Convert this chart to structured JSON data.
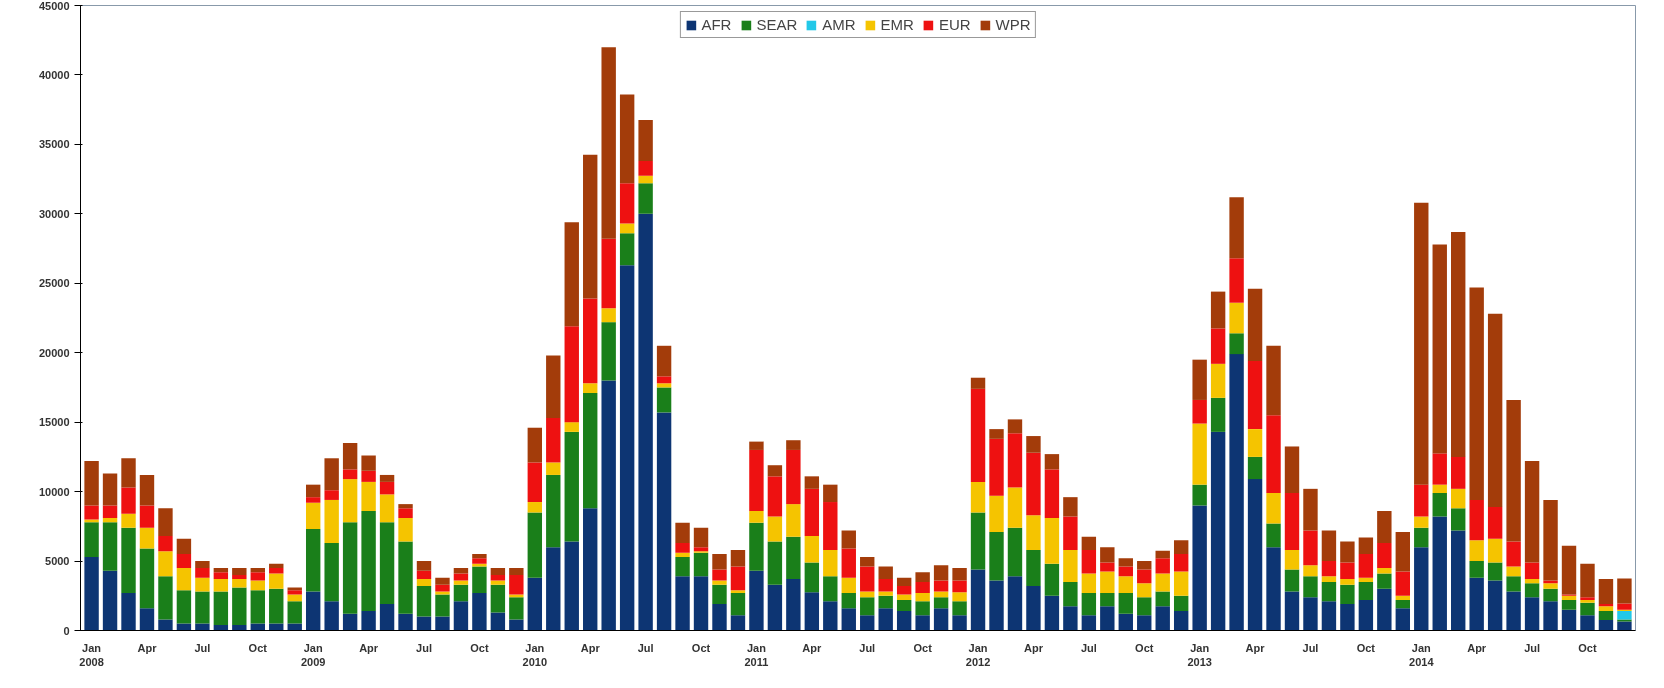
{
  "chart_data": {
    "type": "bar",
    "stacked": true,
    "legend": "top",
    "grid": false,
    "categories": [
      "Jan\n2008",
      null,
      null,
      "Apr",
      null,
      null,
      "Jul",
      null,
      null,
      "Oct",
      null,
      null,
      "Jan\n2009",
      null,
      null,
      "Apr",
      null,
      null,
      "Jul",
      null,
      null,
      "Oct",
      null,
      null,
      "Jan\n2010",
      null,
      null,
      "Apr",
      null,
      null,
      "Jul",
      null,
      null,
      "Oct",
      null,
      null,
      "Jan\n2011",
      null,
      null,
      "Apr",
      null,
      null,
      "Jul",
      null,
      null,
      "Oct",
      null,
      null,
      "Jan\n2012",
      null,
      null,
      "Apr",
      null,
      null,
      "Jul",
      null,
      null,
      "Oct",
      null,
      null,
      "Jan\n2013",
      null,
      null,
      "Apr",
      null,
      null,
      "Jul",
      null,
      null,
      "Oct",
      null,
      null,
      "Jan\n2014",
      null,
      null,
      "Apr",
      null,
      null,
      "Jul",
      null,
      null,
      "Oct",
      null,
      null
    ],
    "ylim": [
      0,
      45000
    ],
    "yticks": [
      0,
      5000,
      10000,
      15000,
      20000,
      25000,
      30000,
      35000,
      40000,
      45000
    ],
    "series": [
      {
        "name": "AFR",
        "color": "#0d3573",
        "values": [
          5300,
          4300,
          2700,
          1600,
          800,
          500,
          500,
          400,
          400,
          500,
          500,
          500,
          2800,
          2100,
          1200,
          1400,
          1900,
          1200,
          1000,
          1000,
          2100,
          2700,
          1300,
          800,
          3800,
          6000,
          6400,
          8800,
          18000,
          26300,
          30000,
          15700,
          3900,
          3900,
          1900,
          1100,
          4300,
          3300,
          3700,
          2750,
          2100,
          1600,
          1100,
          1600,
          1400,
          1100,
          1600,
          1100,
          4400,
          3600,
          3900,
          3200,
          2500,
          1750,
          1100,
          1750,
          1200,
          1100,
          1750,
          1400,
          9000,
          14300,
          19900,
          10900,
          6000,
          2800,
          2400,
          2100,
          1900,
          2200,
          3000,
          1600,
          6000,
          8200,
          7200,
          3800,
          3600,
          2800,
          2400,
          2100,
          1500,
          1100,
          750,
          650
        ]
      },
      {
        "name": "SEAR",
        "color": "#1a7f1a",
        "values": [
          2500,
          3500,
          4700,
          4300,
          3100,
          2400,
          2300,
          2400,
          2700,
          2400,
          2500,
          1600,
          4500,
          4200,
          6600,
          7200,
          5900,
          5200,
          2200,
          1600,
          1200,
          1900,
          2000,
          1600,
          4700,
          5200,
          7900,
          8300,
          4200,
          2300,
          2200,
          1800,
          1400,
          1700,
          1400,
          1600,
          3450,
          3100,
          3050,
          2150,
          1800,
          1100,
          1300,
          900,
          800,
          1000,
          800,
          1000,
          4100,
          3500,
          3500,
          2600,
          2300,
          1750,
          1600,
          950,
          1500,
          1300,
          1050,
          1100,
          1500,
          2450,
          1500,
          1600,
          1700,
          1600,
          1500,
          1400,
          1400,
          1300,
          1100,
          600,
          1400,
          1700,
          1600,
          1200,
          1300,
          1100,
          1000,
          900,
          700,
          900,
          650,
          150
        ]
      },
      {
        "name": "AMR",
        "color": "#22c8e8",
        "values": [
          0,
          0,
          0,
          0,
          0,
          0,
          0,
          0,
          0,
          0,
          0,
          0,
          0,
          0,
          0,
          0,
          0,
          0,
          0,
          0,
          0,
          0,
          0,
          0,
          0,
          0,
          0,
          0,
          0,
          0,
          0,
          0,
          0,
          0,
          0,
          0,
          0,
          0,
          0,
          0,
          0,
          0,
          0,
          0,
          0,
          0,
          0,
          0,
          0,
          0,
          0,
          0,
          0,
          0,
          0,
          0,
          0,
          0,
          0,
          0,
          0,
          0,
          0,
          0,
          0,
          0,
          0,
          0,
          0,
          0,
          0,
          0,
          0,
          0,
          0,
          0,
          0,
          0,
          0,
          0,
          0,
          0,
          0,
          600
        ]
      },
      {
        "name": "EMR",
        "color": "#f5c400",
        "values": [
          200,
          300,
          1000,
          1500,
          1800,
          1600,
          1000,
          900,
          600,
          700,
          1100,
          500,
          1900,
          3100,
          3100,
          2100,
          2000,
          1700,
          500,
          200,
          300,
          200,
          300,
          200,
          750,
          900,
          700,
          700,
          1000,
          700,
          550,
          300,
          300,
          100,
          300,
          200,
          850,
          1800,
          2350,
          1900,
          1900,
          1100,
          400,
          300,
          400,
          600,
          400,
          650,
          2200,
          2600,
          2900,
          2500,
          3300,
          2300,
          1400,
          1550,
          1200,
          1000,
          1300,
          1750,
          4400,
          2450,
          2200,
          2000,
          2200,
          1400,
          800,
          400,
          400,
          300,
          400,
          300,
          800,
          600,
          1400,
          1500,
          1700,
          700,
          300,
          400,
          300,
          200,
          350,
          100
        ]
      },
      {
        "name": "EUR",
        "color": "#ee1111",
        "values": [
          1000,
          900,
          1900,
          1600,
          1100,
          1000,
          700,
          500,
          300,
          600,
          400,
          300,
          400,
          700,
          700,
          800,
          900,
          700,
          600,
          500,
          500,
          400,
          400,
          1400,
          2850,
          3200,
          6900,
          6100,
          5000,
          2900,
          1050,
          500,
          700,
          300,
          800,
          1700,
          4400,
          2900,
          3900,
          3400,
          3450,
          2100,
          1800,
          900,
          600,
          800,
          800,
          850,
          6700,
          4100,
          3900,
          4500,
          3500,
          2400,
          1700,
          650,
          700,
          1000,
          1100,
          1250,
          1700,
          2550,
          3200,
          4900,
          5600,
          4100,
          2500,
          1100,
          1200,
          1700,
          1800,
          1750,
          2300,
          2250,
          2300,
          2900,
          2300,
          1800,
          1200,
          200,
          100,
          200,
          150,
          450
        ]
      },
      {
        "name": "WPR",
        "color": "#a33c0a",
        "values": [
          3200,
          2300,
          2100,
          2200,
          2000,
          1100,
          500,
          300,
          500,
          300,
          300,
          200,
          900,
          2300,
          1900,
          1100,
          500,
          300,
          700,
          500,
          400,
          300,
          500,
          500,
          2500,
          4500,
          7500,
          10350,
          13800,
          6400,
          2950,
          2200,
          1450,
          1400,
          1100,
          1200,
          600,
          800,
          700,
          900,
          1250,
          1300,
          700,
          900,
          600,
          700,
          1100,
          900,
          800,
          700,
          1000,
          1200,
          1100,
          1400,
          950,
          1100,
          600,
          600,
          550,
          1000,
          2900,
          2650,
          4400,
          5200,
          5000,
          3350,
          3000,
          2200,
          1500,
          1200,
          2300,
          2850,
          20300,
          15050,
          16200,
          15300,
          13900,
          10200,
          7300,
          5800,
          3500,
          2400,
          1800,
          1800
        ]
      }
    ]
  }
}
